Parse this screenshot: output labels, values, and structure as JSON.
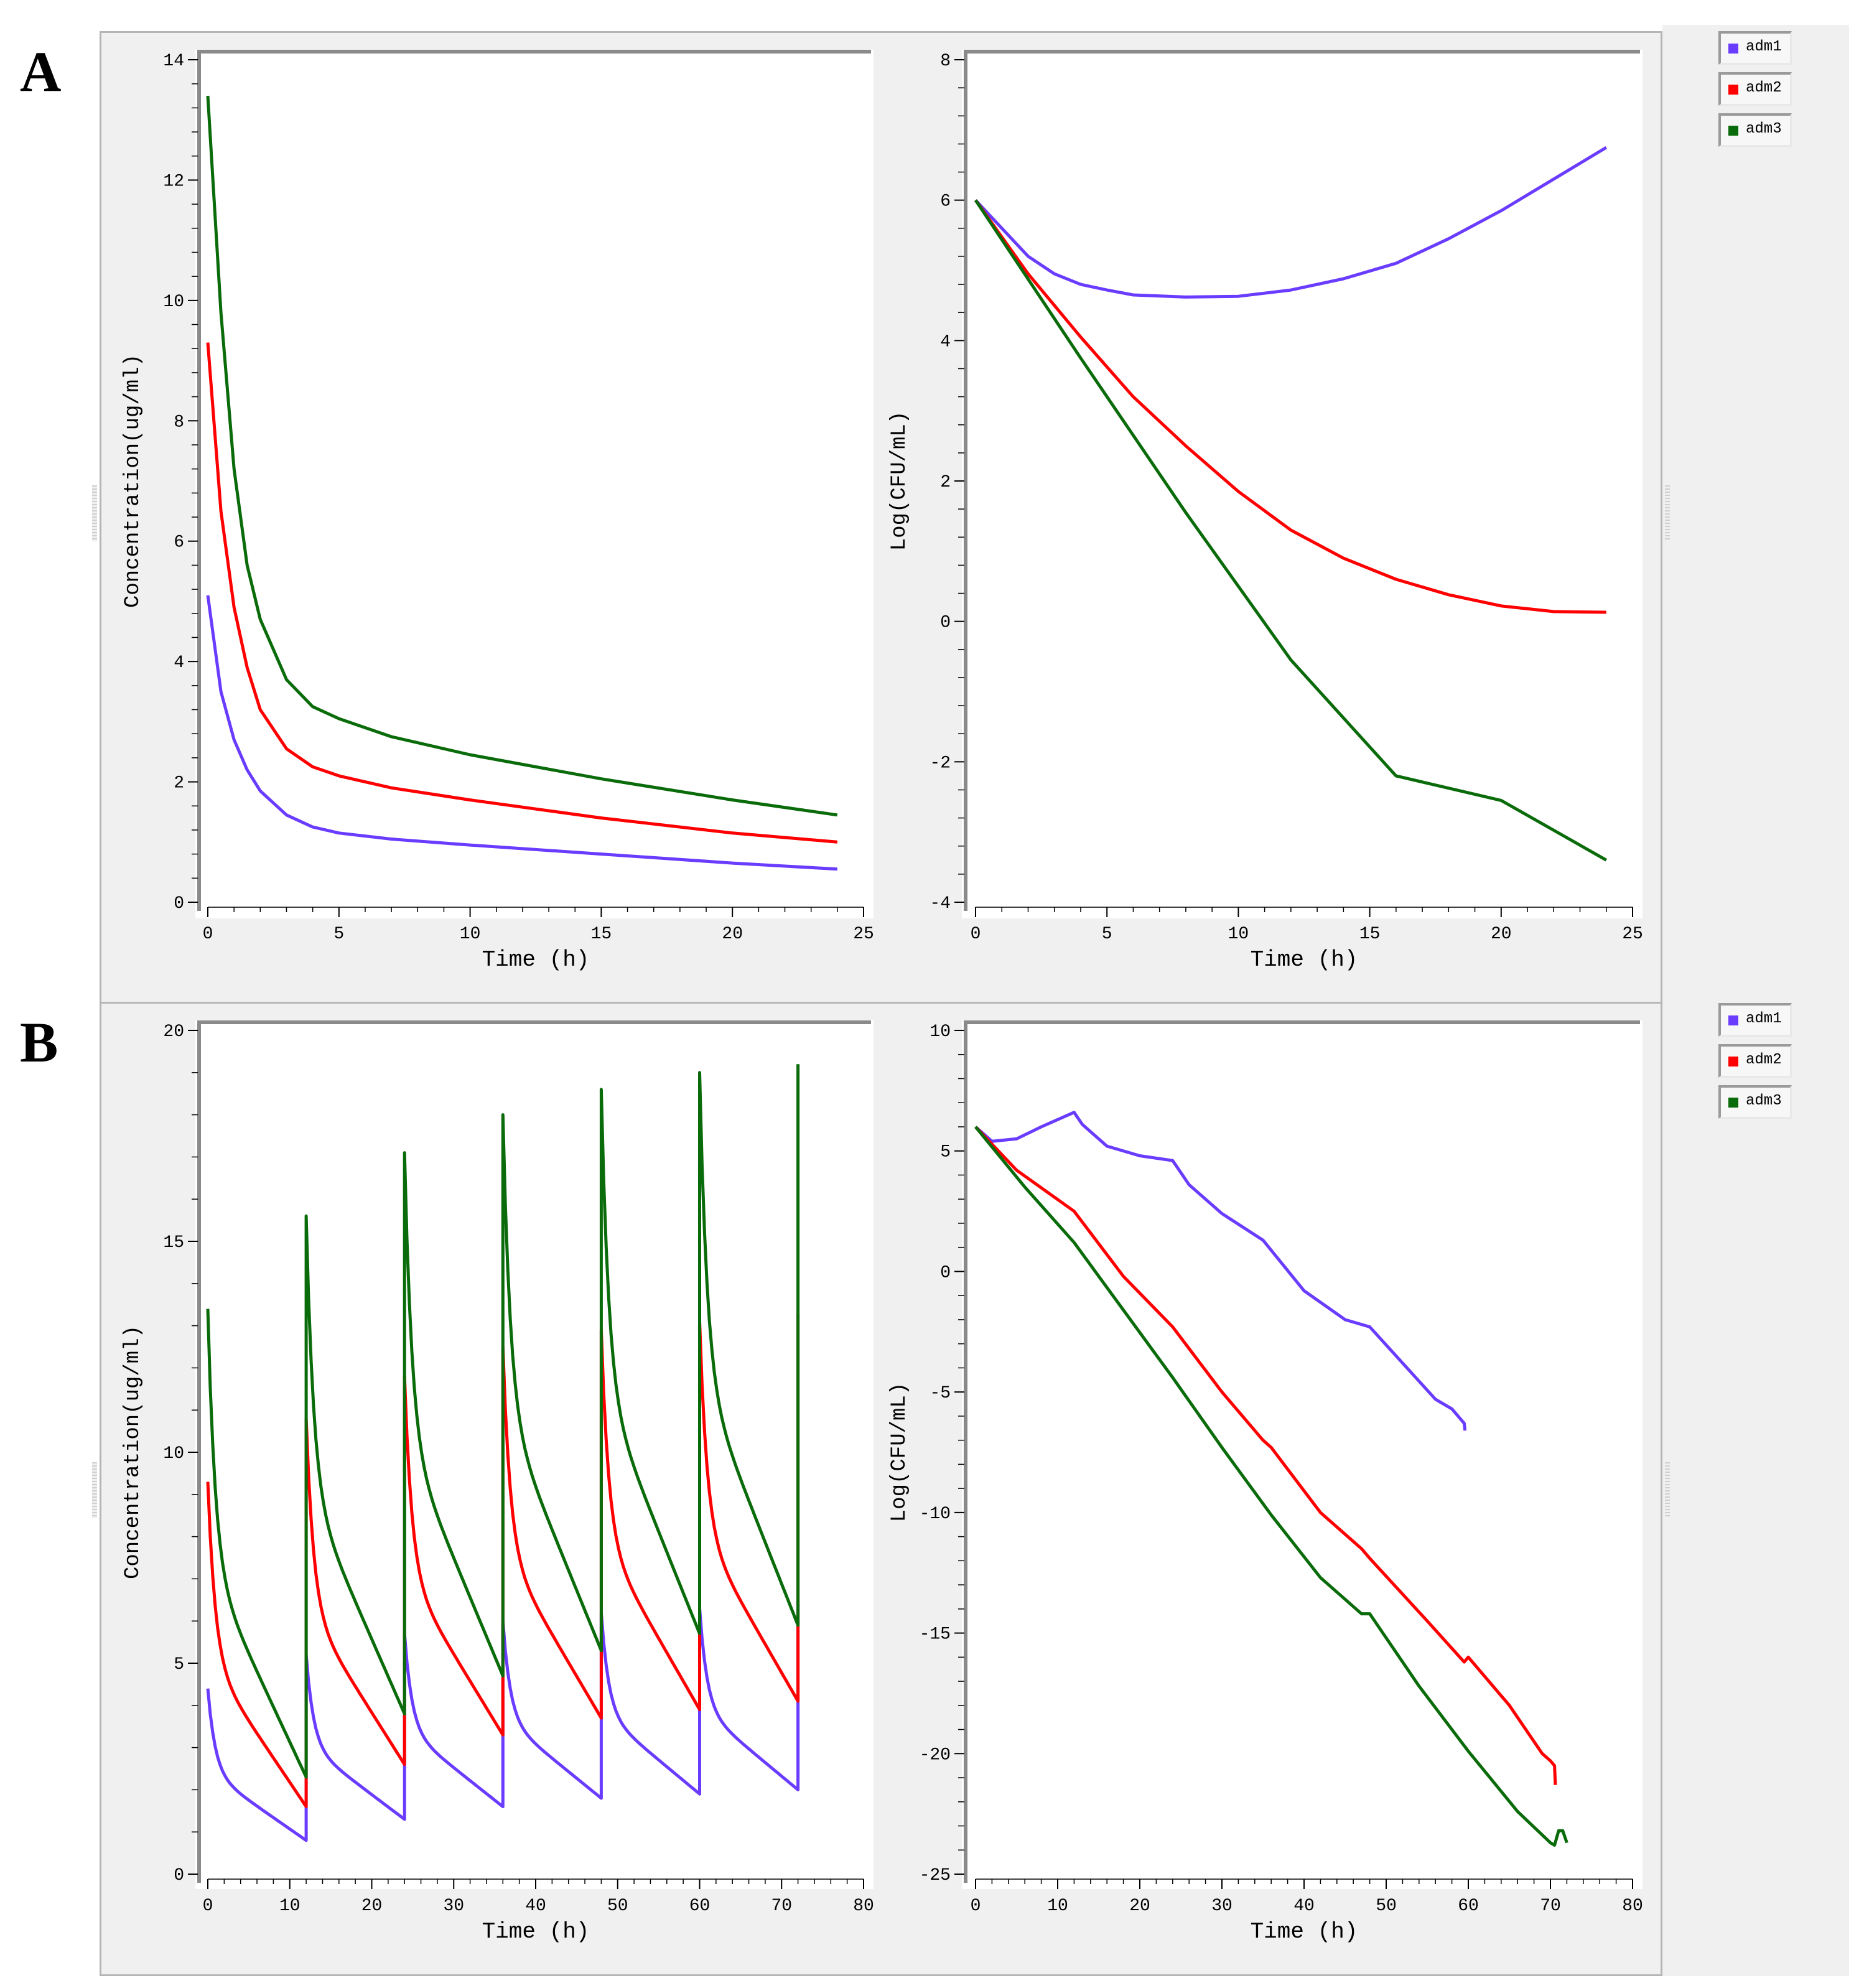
{
  "figure_labels": [
    "A",
    "B"
  ],
  "legend": [
    {
      "name": "adm1",
      "color": "#6a3cff"
    },
    {
      "name": "adm2",
      "color": "#ff0000"
    },
    {
      "name": "adm3",
      "color": "#0a6b0a"
    }
  ],
  "chart_data": [
    {
      "id": "A-left",
      "type": "line",
      "xlabel": "Time (h)",
      "ylabel": "Concentration(ug/ml)",
      "xlim": [
        0,
        25
      ],
      "ylim": [
        0,
        14
      ],
      "xticks": [
        0,
        5,
        10,
        15,
        20,
        25
      ],
      "yticks": [
        0,
        2,
        4,
        6,
        8,
        10,
        12,
        14
      ],
      "series": [
        {
          "name": "adm1",
          "x": [
            0,
            0.5,
            1,
            1.5,
            2,
            3,
            4,
            5,
            7,
            10,
            15,
            20,
            24
          ],
          "y": [
            5.1,
            3.5,
            2.7,
            2.2,
            1.85,
            1.45,
            1.25,
            1.15,
            1.05,
            0.95,
            0.8,
            0.65,
            0.55
          ]
        },
        {
          "name": "adm2",
          "x": [
            0,
            0.5,
            1,
            1.5,
            2,
            3,
            4,
            5,
            7,
            10,
            15,
            20,
            24
          ],
          "y": [
            9.3,
            6.5,
            4.9,
            3.9,
            3.2,
            2.55,
            2.25,
            2.1,
            1.9,
            1.7,
            1.4,
            1.15,
            1.0
          ]
        },
        {
          "name": "adm3",
          "x": [
            0,
            0.5,
            1,
            1.5,
            2,
            3,
            4,
            5,
            7,
            10,
            15,
            20,
            24
          ],
          "y": [
            13.4,
            9.8,
            7.2,
            5.6,
            4.7,
            3.7,
            3.25,
            3.05,
            2.75,
            2.45,
            2.05,
            1.7,
            1.45
          ]
        }
      ]
    },
    {
      "id": "A-right",
      "type": "line",
      "xlabel": "Time (h)",
      "ylabel": "Log(CFU/mL)",
      "xlim": [
        0,
        25
      ],
      "ylim": [
        -4,
        8
      ],
      "xticks": [
        0,
        5,
        10,
        15,
        20,
        25
      ],
      "yticks": [
        -4,
        -2,
        0,
        2,
        4,
        6,
        8
      ],
      "series": [
        {
          "name": "adm1",
          "x": [
            0,
            1,
            2,
            3,
            4,
            5,
            6,
            8,
            10,
            12,
            14,
            16,
            18,
            20,
            22,
            24
          ],
          "y": [
            6.0,
            5.6,
            5.2,
            4.95,
            4.8,
            4.72,
            4.65,
            4.62,
            4.63,
            4.72,
            4.88,
            5.1,
            5.45,
            5.85,
            6.3,
            6.75
          ]
        },
        {
          "name": "adm2",
          "x": [
            0,
            2,
            4,
            6,
            8,
            10,
            12,
            14,
            16,
            18,
            20,
            22,
            24
          ],
          "y": [
            6.0,
            4.95,
            4.05,
            3.2,
            2.5,
            1.85,
            1.3,
            0.9,
            0.6,
            0.38,
            0.22,
            0.14,
            0.13
          ]
        },
        {
          "name": "adm3",
          "x": [
            0,
            4,
            8,
            12,
            16,
            20,
            24
          ],
          "y": [
            6.0,
            3.75,
            1.55,
            -0.55,
            -2.2,
            -2.55,
            -3.4
          ]
        }
      ]
    },
    {
      "id": "B-left",
      "type": "line",
      "xlabel": "Time (h)",
      "ylabel": "Concentration(ug/ml)",
      "xlim": [
        0,
        80
      ],
      "ylim": [
        0,
        20
      ],
      "xticks": [
        0,
        10,
        20,
        30,
        40,
        50,
        60,
        70,
        80
      ],
      "yticks": [
        0,
        5,
        10,
        15,
        20
      ],
      "dose_interval": 12,
      "dose_count": 7,
      "series": [
        {
          "name": "adm1",
          "peaks": [
            4.4,
            5.2,
            5.7,
            6.0,
            6.2,
            6.3,
            6.4
          ],
          "troughs": [
            0.8,
            1.3,
            1.6,
            1.8,
            1.9,
            2.0
          ]
        },
        {
          "name": "adm2",
          "peaks": [
            9.3,
            10.8,
            11.8,
            12.5,
            12.9,
            13.1,
            13.3
          ],
          "troughs": [
            1.6,
            2.6,
            3.3,
            3.7,
            3.9,
            4.1
          ]
        },
        {
          "name": "adm3",
          "peaks": [
            13.4,
            15.6,
            17.1,
            18.0,
            18.6,
            19.0,
            19.2
          ],
          "troughs": [
            2.3,
            3.8,
            4.7,
            5.3,
            5.7,
            5.9
          ]
        }
      ]
    },
    {
      "id": "B-right",
      "type": "line",
      "xlabel": "Time (h)",
      "ylabel": "Log(CFU/mL)",
      "xlim": [
        0,
        80
      ],
      "ylim": [
        -25,
        10
      ],
      "xticks": [
        0,
        10,
        20,
        30,
        40,
        50,
        60,
        70,
        80
      ],
      "yticks": [
        -25,
        -20,
        -15,
        -10,
        -5,
        0,
        5,
        10
      ],
      "series": [
        {
          "name": "adm1",
          "x": [
            0,
            2,
            5,
            8,
            12,
            13,
            16,
            20,
            24,
            26,
            30,
            35,
            40,
            45,
            48,
            52,
            56,
            58,
            59.5,
            59.6
          ],
          "y": [
            6.0,
            5.4,
            5.5,
            6.0,
            6.6,
            6.1,
            5.2,
            4.8,
            4.6,
            3.6,
            2.4,
            1.3,
            -0.8,
            -2.0,
            -2.3,
            -3.8,
            -5.3,
            -5.7,
            -6.3,
            -6.6
          ]
        },
        {
          "name": "adm2",
          "x": [
            0,
            5,
            12,
            18,
            24,
            30,
            35,
            36,
            42,
            47,
            48,
            55,
            59.5,
            60,
            65,
            69,
            70,
            70.5,
            70.6
          ],
          "y": [
            6.0,
            4.2,
            2.5,
            -0.2,
            -2.3,
            -5.0,
            -7.0,
            -7.3,
            -10.0,
            -11.5,
            -11.9,
            -14.5,
            -16.2,
            -16.0,
            -18.0,
            -20.0,
            -20.3,
            -20.5,
            -21.3
          ]
        },
        {
          "name": "adm3",
          "x": [
            0,
            6,
            12,
            18,
            24,
            30,
            36,
            42,
            47,
            48,
            54,
            60,
            66,
            70,
            70.5,
            71,
            71.5,
            72
          ],
          "y": [
            6.0,
            3.5,
            1.2,
            -1.6,
            -4.4,
            -7.3,
            -10.1,
            -12.7,
            -14.2,
            -14.2,
            -17.2,
            -19.9,
            -22.4,
            -23.7,
            -23.8,
            -23.2,
            -23.2,
            -23.7
          ]
        }
      ]
    }
  ]
}
